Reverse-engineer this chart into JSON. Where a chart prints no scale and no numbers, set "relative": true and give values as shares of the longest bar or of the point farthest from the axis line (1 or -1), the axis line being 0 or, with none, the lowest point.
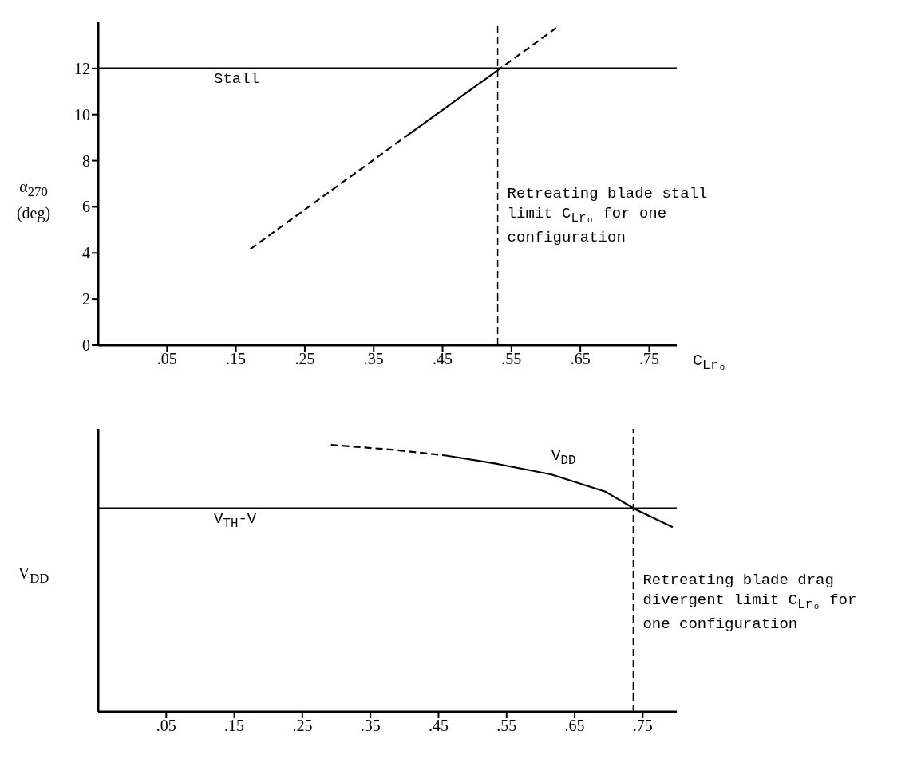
{
  "chart_data": [
    {
      "type": "line",
      "xlabel": "C$_{Lrₒ}$",
      "ylabel": "α$_{270}$ (deg)",
      "xlim": [
        -0.05,
        0.79
      ],
      "xticks": [
        {
          "value": 0.05,
          "label": ".05"
        },
        {
          "value": 0.15,
          "label": ".15"
        },
        {
          "value": 0.25,
          "label": ".25"
        },
        {
          "value": 0.35,
          "label": ".35"
        },
        {
          "value": 0.45,
          "label": ".45"
        },
        {
          "value": 0.55,
          "label": ".55"
        },
        {
          "value": 0.65,
          "label": ".65"
        },
        {
          "value": 0.75,
          "label": ".75"
        }
      ],
      "ylim": [
        0,
        14
      ],
      "yticks": [
        0,
        2,
        4,
        6,
        8,
        10,
        12
      ],
      "marker": "none",
      "series": [
        {
          "color": "#000000",
          "line_style": "dashed",
          "x": [
            0.171,
            0.4
          ],
          "values": [
            4.17,
            9.12
          ]
        },
        {
          "color": "#000000",
          "line_style": "solid",
          "x": [
            0.4,
            0.528
          ],
          "values": [
            9.12,
            11.88
          ]
        },
        {
          "color": "#000000",
          "line_style": "dashed",
          "x": [
            0.528,
            0.615
          ],
          "values": [
            11.88,
            13.75
          ]
        }
      ],
      "ref_lines": [
        {
          "axis": "y",
          "value": 12,
          "label": "Stall",
          "line_style": "solid",
          "color": "#000000"
        },
        {
          "axis": "x",
          "value": 0.53,
          "label": "Retreating blade stall limit C$_{Lrₒ}$ for one configuration",
          "line_style": "dashed",
          "color": "#000000"
        }
      ]
    },
    {
      "type": "line",
      "ylabel": "V$_{DD}$",
      "relative": true,
      "xlim": [
        -0.05,
        0.8
      ],
      "xticks": [
        {
          "value": 0.05,
          "label": ".05"
        },
        {
          "value": 0.15,
          "label": ".15"
        },
        {
          "value": 0.25,
          "label": ".25"
        },
        {
          "value": 0.35,
          "label": ".35"
        },
        {
          "value": 0.45,
          "label": ".45"
        },
        {
          "value": 0.55,
          "label": ".55"
        },
        {
          "value": 0.65,
          "label": ".65"
        },
        {
          "value": 0.75,
          "label": ".75"
        }
      ],
      "marker": "none",
      "series": [
        {
          "color": "#000000",
          "line_style": "dashed",
          "x": [
            0.292,
            0.382,
            0.461
          ],
          "values": [
            1,
            0.982,
            0.96
          ]
        },
        {
          "name": "V$_{DD}$",
          "color": "#000000",
          "line_style": "solid",
          "x": [
            0.461,
            0.538,
            0.616,
            0.695,
            0.739,
            0.794
          ],
          "values": [
            0.96,
            0.928,
            0.889,
            0.825,
            0.759,
            0.692
          ]
        }
      ],
      "ref_lines": [
        {
          "axis": "y",
          "value": 0.762,
          "label": "V$_{TH}$-V",
          "line_style": "solid",
          "color": "#000000"
        },
        {
          "axis": "x",
          "value": 0.736,
          "label": "Retreating blade drag divergent limit C$_{Lrₒ}$ for one configuration",
          "line_style": "dashed",
          "color": "#000000"
        }
      ]
    }
  ]
}
